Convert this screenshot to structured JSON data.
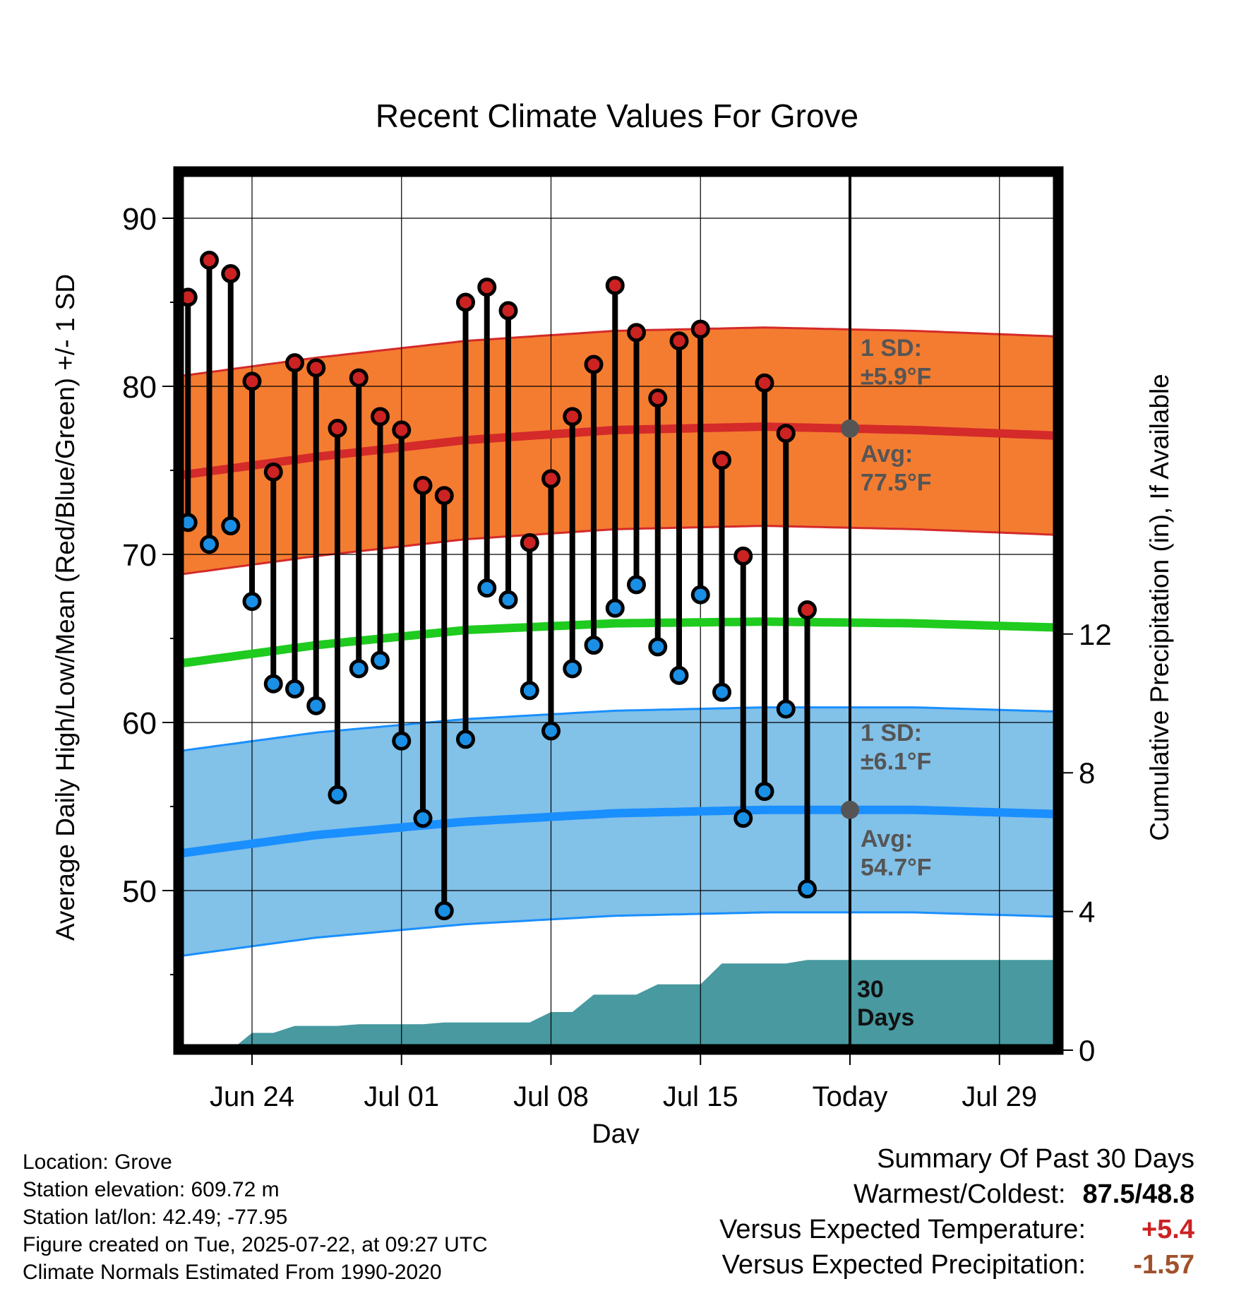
{
  "chart_data": {
    "type": "line",
    "title": "Recent Climate Values For Grove",
    "xlabel": "Day",
    "ylabel": "Average Daily High/Low/Mean (Red/Blue/Green) +/- 1 SD",
    "y2label": "Cumulative Precipitation (in), If Available",
    "xlim": [
      "2025-06-20",
      "2025-08-02"
    ],
    "ylim": [
      40.5,
      93
    ],
    "y_ticks": [
      50,
      60,
      70,
      80,
      90
    ],
    "y2lim": [
      0,
      24
    ],
    "y2_ticks": [
      0,
      4,
      8,
      12
    ],
    "x_ticks": [
      {
        "date": "2025-06-24",
        "label": "Jun 24"
      },
      {
        "date": "2025-07-01",
        "label": "Jul 01"
      },
      {
        "date": "2025-07-08",
        "label": "Jul 08"
      },
      {
        "date": "2025-07-15",
        "label": "Jul 15"
      },
      {
        "date": "2025-07-22",
        "label": "Today"
      },
      {
        "date": "2025-07-29",
        "label": "Jul 29"
      }
    ],
    "grid": true,
    "today": "2025-07-22",
    "days": [
      "2025-06-21",
      "2025-06-22",
      "2025-06-23",
      "2025-06-24",
      "2025-06-25",
      "2025-06-26",
      "2025-06-27",
      "2025-06-28",
      "2025-06-29",
      "2025-06-30",
      "2025-07-01",
      "2025-07-02",
      "2025-07-03",
      "2025-07-04",
      "2025-07-05",
      "2025-07-06",
      "2025-07-07",
      "2025-07-08",
      "2025-07-09",
      "2025-07-10",
      "2025-07-11",
      "2025-07-12",
      "2025-07-13",
      "2025-07-14",
      "2025-07-15",
      "2025-07-16",
      "2025-07-17",
      "2025-07-18",
      "2025-07-19",
      "2025-07-20",
      "2025-07-21"
    ],
    "series": [
      {
        "name": "High",
        "color": "#cc2222",
        "values": [
          85.3,
          87.5,
          86.7,
          80.3,
          74.9,
          81.4,
          81.1,
          77.5,
          80.5,
          78.2,
          77.4,
          74.1,
          73.5,
          85.0,
          85.9,
          84.5,
          70.7,
          74.5,
          78.2,
          81.3,
          86.0,
          83.2,
          79.3,
          82.7,
          83.4,
          75.6,
          69.9,
          80.2,
          77.2,
          66.7,
          null
        ]
      },
      {
        "name": "Low",
        "color": "#1a8fe6",
        "values": [
          71.9,
          70.6,
          71.7,
          67.2,
          62.3,
          62.0,
          61.0,
          55.7,
          63.2,
          63.7,
          58.9,
          54.3,
          48.8,
          59.0,
          68.0,
          67.3,
          61.9,
          59.5,
          63.2,
          64.6,
          66.8,
          68.2,
          64.5,
          62.8,
          67.6,
          61.8,
          54.3,
          55.9,
          60.8,
          50.1,
          null
        ]
      }
    ],
    "normals": {
      "x": [
        "2025-06-20",
        "2025-06-27",
        "2025-07-04",
        "2025-07-11",
        "2025-07-18",
        "2025-07-25",
        "2025-08-02"
      ],
      "high_avg": [
        74.6,
        75.8,
        76.8,
        77.4,
        77.6,
        77.4,
        77.0
      ],
      "high_sd": 5.9,
      "mean_avg": [
        63.4,
        64.6,
        65.5,
        65.9,
        66.0,
        65.9,
        65.6
      ],
      "low_avg": [
        52.1,
        53.3,
        54.1,
        54.6,
        54.8,
        54.8,
        54.5
      ],
      "low_sd": 6.1
    },
    "precip_cumulative": {
      "dates": [
        "2025-06-23",
        "2025-06-24",
        "2025-06-25",
        "2025-06-26",
        "2025-06-27",
        "2025-06-28",
        "2025-06-29",
        "2025-06-30",
        "2025-07-01",
        "2025-07-02",
        "2025-07-03",
        "2025-07-04",
        "2025-07-05",
        "2025-07-06",
        "2025-07-07",
        "2025-07-08",
        "2025-07-09",
        "2025-07-10",
        "2025-07-11",
        "2025-07-12",
        "2025-07-13",
        "2025-07-14",
        "2025-07-15",
        "2025-07-16",
        "2025-07-17",
        "2025-07-18",
        "2025-07-19",
        "2025-07-20",
        "2025-07-21",
        "2025-08-02"
      ],
      "values": [
        0.0,
        0.5,
        0.5,
        0.7,
        0.7,
        0.7,
        0.75,
        0.75,
        0.75,
        0.75,
        0.8,
        0.8,
        0.8,
        0.8,
        0.8,
        1.1,
        1.1,
        1.6,
        1.6,
        1.6,
        1.9,
        1.9,
        1.9,
        2.5,
        2.5,
        2.5,
        2.5,
        2.6,
        2.6,
        2.6
      ]
    },
    "annotations": {
      "high_sd_label": "1 SD:",
      "high_sd_value": "±5.9°F",
      "high_avg_label": "Avg:",
      "high_avg_value": "77.5°F",
      "low_sd_label": "1 SD:",
      "low_sd_value": "±6.1°F",
      "low_avg_label": "Avg:",
      "low_avg_value": "54.7°F",
      "window_line1": "30",
      "window_line2": "Days"
    },
    "colors": {
      "high_band": "#f47c30",
      "high_line": "#d42a2a",
      "low_band": "#82c1e8",
      "low_line": "#1a8fff",
      "mean_line": "#1ecb1e",
      "precip": "#4899a0",
      "annotation": "#555555"
    }
  },
  "footer": {
    "location": "Location: Grove",
    "elevation": "Station elevation: 609.72 m",
    "latlon": "Station lat/lon: 42.49; -77.95",
    "created": "Figure created on Tue, 2025-07-22, at 09:27 UTC",
    "normals_source": "Climate Normals Estimated From 1990-2020"
  },
  "summary": {
    "title": "Summary Of Past 30 Days",
    "warm_cold_label": "Warmest/Coldest:",
    "warm_cold_value": "87.5/48.8",
    "temp_label": "Versus Expected Temperature:",
    "temp_value": "+5.4",
    "temp_color": "#cc2222",
    "precip_label": "Versus Expected Precipitation:",
    "precip_value": "-1.57",
    "precip_color": "#a0522d"
  }
}
